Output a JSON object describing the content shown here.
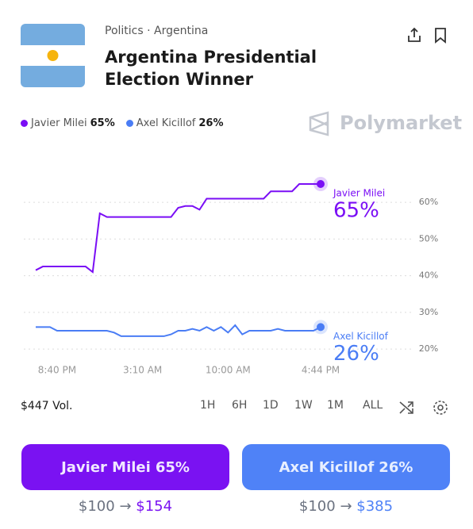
{
  "header": {
    "category": "Politics · Argentina",
    "title": "Argentina Presidential Election Winner"
  },
  "brand": "Polymarket",
  "chart_data": {
    "type": "line",
    "categories": [
      null,
      null,
      null,
      "8:40 PM",
      null,
      null,
      null,
      null,
      null,
      null,
      null,
      null,
      null,
      null,
      null,
      "3:10 AM",
      null,
      null,
      null,
      null,
      null,
      null,
      null,
      null,
      null,
      null,
      null,
      "10:00 AM",
      null,
      null,
      null,
      null,
      null,
      null,
      null,
      null,
      null,
      null,
      null,
      null,
      "4:44 PM"
    ],
    "series": [
      {
        "name": "Javier Milei",
        "color": "#7a0ef5",
        "values": [
          41.5,
          42.5,
          42.5,
          42.5,
          42.5,
          42.5,
          42.5,
          42.5,
          41,
          57,
          56,
          56,
          56,
          56,
          56,
          56,
          56,
          56,
          56,
          56,
          58.5,
          59,
          59,
          58,
          61,
          61,
          61,
          61,
          61,
          61,
          61,
          61,
          61,
          63,
          63,
          63,
          63,
          65,
          65,
          65,
          65
        ],
        "value_labels": [
          null,
          null,
          null,
          null,
          null,
          null,
          null,
          null,
          null,
          null,
          null,
          null,
          null,
          null,
          null,
          null,
          null,
          null,
          null,
          null,
          null,
          null,
          null,
          null,
          null,
          null,
          null,
          null,
          null,
          null,
          null,
          null,
          null,
          null,
          null,
          null,
          null,
          null,
          null,
          null,
          "65%"
        ]
      },
      {
        "name": "Axel Kicillof",
        "color": "#4a7df5",
        "values": [
          26,
          26,
          26,
          25,
          25,
          25,
          25,
          25,
          25,
          25,
          25,
          24.5,
          23.5,
          23.5,
          23.5,
          23.5,
          23.5,
          23.5,
          23.5,
          24,
          25,
          25,
          25.5,
          25,
          26,
          25,
          26,
          24.5,
          26.5,
          24,
          25,
          25,
          25,
          25,
          25.5,
          25,
          25,
          25,
          25,
          25,
          26
        ],
        "value_labels": [
          null,
          null,
          null,
          null,
          null,
          null,
          null,
          null,
          null,
          null,
          null,
          null,
          null,
          null,
          null,
          null,
          null,
          null,
          null,
          null,
          null,
          null,
          null,
          null,
          null,
          null,
          null,
          null,
          null,
          null,
          null,
          null,
          null,
          null,
          null,
          null,
          null,
          null,
          null,
          null,
          "26%"
        ]
      }
    ],
    "ylim": [
      15.7,
      73
    ],
    "yticks": [
      {
        "value": 20,
        "label": "20%"
      },
      {
        "value": 30,
        "label": "30%"
      },
      {
        "value": 40,
        "label": "40%"
      },
      {
        "value": 50,
        "label": "50%"
      },
      {
        "value": 60,
        "label": "60%"
      }
    ],
    "grid": true
  },
  "volume": "$447 Vol.",
  "ranges": [
    "1H",
    "6H",
    "1D",
    "1W",
    "1M",
    "ALL"
  ],
  "payout_arrow": "→",
  "payouts": [
    {
      "stake": "$100",
      "payout": "$154"
    },
    {
      "stake": "$100",
      "payout": "$385"
    }
  ]
}
